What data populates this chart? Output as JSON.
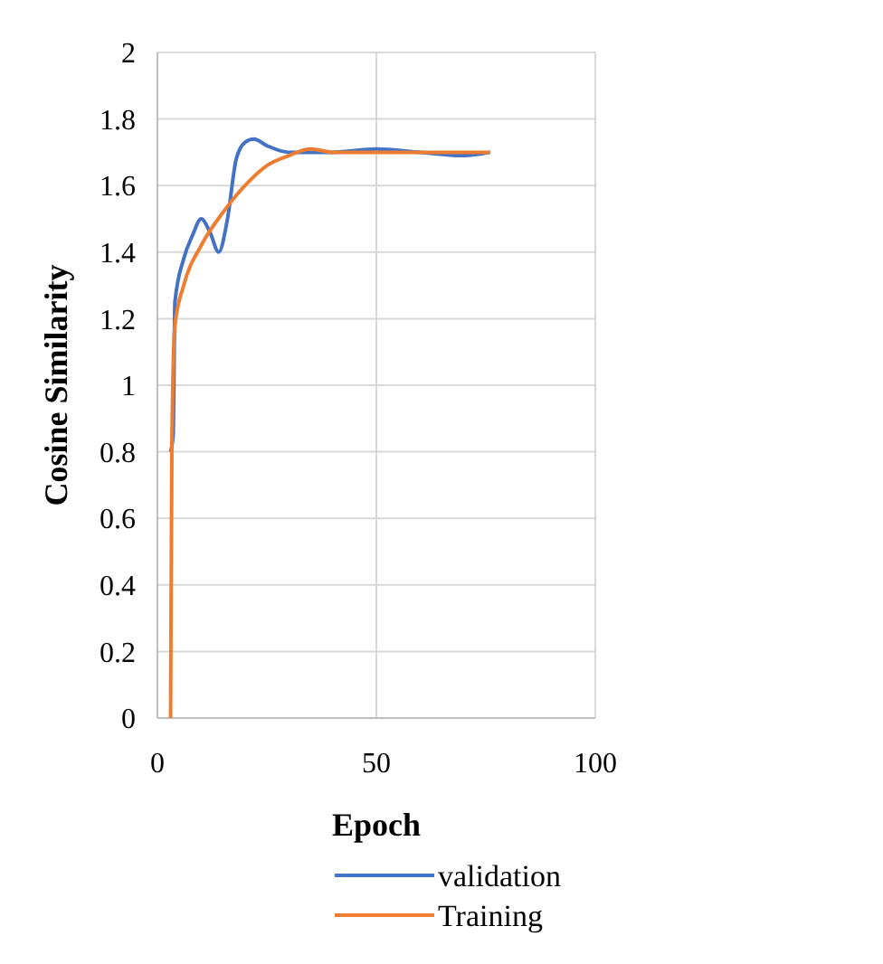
{
  "chart_data": {
    "type": "line",
    "xlabel": "Epoch",
    "ylabel": "Cosine Similarity",
    "xlim": [
      0,
      100
    ],
    "xticks": [
      0,
      50,
      100
    ],
    "ylim": [
      0,
      2
    ],
    "yticks": [
      0,
      0.2,
      0.4,
      0.6,
      0.8,
      1,
      1.2,
      1.4,
      1.6,
      1.8,
      2
    ],
    "grid": true,
    "legend": "bottom",
    "marker": "none",
    "line_style": "solid",
    "series": [
      {
        "name": "validation",
        "color": "#4472c4",
        "x": [
          3,
          3.6,
          4,
          6,
          8,
          10,
          12,
          14,
          16,
          18,
          20,
          22,
          25,
          30,
          35,
          40,
          50,
          60,
          70,
          76
        ],
        "values": [
          0.8,
          0.85,
          1.25,
          1.38,
          1.45,
          1.5,
          1.46,
          1.4,
          1.5,
          1.68,
          1.73,
          1.74,
          1.72,
          1.7,
          1.7,
          1.7,
          1.71,
          1.7,
          1.69,
          1.7
        ]
      },
      {
        "name": "Training",
        "color": "#ed7d31",
        "x": [
          3,
          3.3,
          4,
          6,
          10,
          15,
          20,
          25,
          30,
          35,
          40,
          50,
          60,
          76
        ],
        "values": [
          0,
          0.82,
          1.18,
          1.3,
          1.42,
          1.52,
          1.6,
          1.66,
          1.69,
          1.71,
          1.7,
          1.7,
          1.7,
          1.7
        ]
      }
    ]
  }
}
